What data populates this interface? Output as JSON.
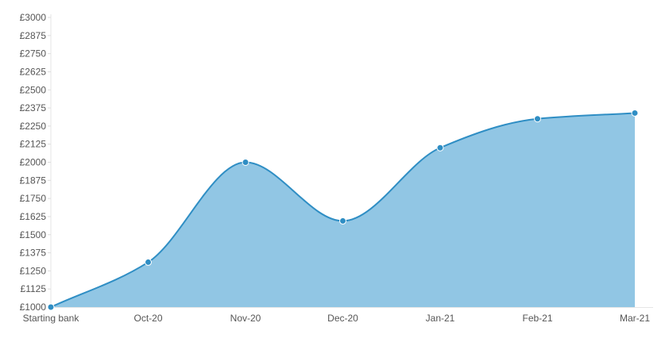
{
  "chart_data": {
    "type": "area",
    "categories": [
      "Starting bank",
      "Oct-20",
      "Nov-20",
      "Dec-20",
      "Jan-21",
      "Feb-21",
      "Mar-21"
    ],
    "series": [
      {
        "values": [
          1000,
          1310,
          2000,
          1595,
          2100,
          2300,
          2340
        ]
      }
    ],
    "ylim": [
      1000,
      3000
    ],
    "yticks": [
      "£3000",
      "£2875",
      "£2750",
      "£2625",
      "£2500",
      "£2375",
      "£2250",
      "£2125",
      "£2000",
      "£1875",
      "£1750",
      "£1625",
      "£1500",
      "£1375",
      "£1250",
      "£1125",
      "£1000"
    ],
    "ytick_values": [
      3000,
      2875,
      2750,
      2625,
      2500,
      2375,
      2250,
      2125,
      2000,
      1875,
      1750,
      1625,
      1500,
      1375,
      1250,
      1125,
      1000
    ],
    "grid": false,
    "legend": "none",
    "colors": {
      "fill": "#91c6e4",
      "line": "#2f8ec4",
      "point": "#2f8ec4",
      "point_stroke": "#ffffff"
    }
  }
}
